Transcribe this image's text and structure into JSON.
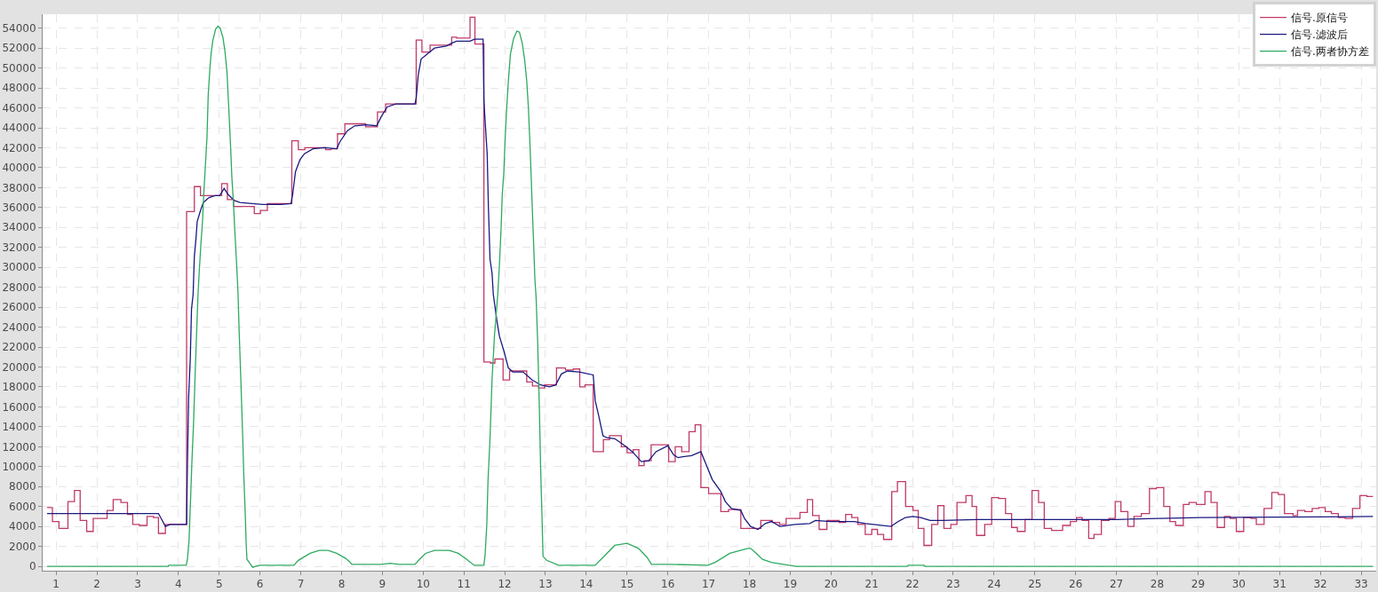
{
  "chart_data": {
    "type": "line",
    "legend": "top right",
    "grid": true,
    "xlim": [
      0.67,
      33.37
    ],
    "xticks": [
      1,
      2,
      3,
      4,
      5,
      6,
      7,
      8,
      9,
      10,
      11,
      12,
      13,
      14,
      15,
      16,
      17,
      18,
      19,
      20,
      21,
      22,
      23,
      24,
      25,
      26,
      27,
      28,
      29,
      30,
      31,
      32,
      33
    ],
    "ylim": [
      -440,
      55400
    ],
    "yticks": [
      0,
      2000,
      4000,
      6000,
      8000,
      10000,
      12000,
      14000,
      16000,
      18000,
      20000,
      22000,
      24000,
      26000,
      28000,
      30000,
      32000,
      34000,
      36000,
      38000,
      40000,
      42000,
      44000,
      46000,
      48000,
      50000,
      52000,
      54000
    ],
    "series": [
      {
        "name": "信号.原信号",
        "color": "#c03a6a",
        "type": "step",
        "x": [
          0.78,
          0.91,
          1.07,
          1.29,
          1.45,
          1.59,
          1.75,
          1.91,
          2.25,
          2.4,
          2.59,
          2.75,
          2.88,
          3.04,
          3.23,
          3.39,
          3.51,
          3.68,
          4.2,
          4.39,
          4.54,
          5.06,
          5.2,
          5.35,
          5.86,
          6.01,
          6.18,
          6.78,
          6.94,
          7.1,
          7.61,
          7.74,
          7.9,
          8.08,
          8.59,
          8.88,
          9.08,
          9.83,
          9.97,
          10.17,
          10.7,
          10.82,
          11.15,
          11.27,
          11.49,
          11.65,
          11.76,
          11.96,
          12.12,
          12.54,
          12.68,
          12.83,
          12.98,
          13.27,
          13.49,
          13.68,
          13.84,
          13.97,
          14.17,
          14.42,
          14.57,
          14.86,
          15.0,
          15.15,
          15.29,
          15.42,
          15.59,
          16.02,
          16.18,
          16.34,
          16.52,
          16.67,
          16.81,
          17.0,
          17.3,
          17.49,
          17.79,
          18.28,
          18.56,
          18.74,
          18.9,
          19.24,
          19.42,
          19.55,
          19.71,
          19.9,
          20.2,
          20.36,
          20.51,
          20.66,
          20.84,
          21.0,
          21.14,
          21.29,
          21.49,
          21.63,
          21.83,
          22.01,
          22.14,
          22.28,
          22.47,
          22.62,
          22.77,
          22.94,
          23.09,
          23.31,
          23.46,
          23.57,
          23.77,
          23.94,
          24.11,
          24.28,
          24.43,
          24.57,
          24.76,
          24.93,
          25.09,
          25.23,
          25.41,
          25.68,
          25.87,
          26.02,
          26.16,
          26.32,
          26.45,
          26.63,
          26.82,
          26.97,
          27.11,
          27.28,
          27.43,
          27.61,
          27.81,
          27.98,
          28.16,
          28.31,
          28.45,
          28.64,
          28.78,
          28.96,
          29.17,
          29.32,
          29.47,
          29.65,
          29.79,
          29.94,
          30.12,
          30.3,
          30.43,
          30.62,
          30.81,
          30.97,
          31.12,
          31.33,
          31.44,
          31.62,
          31.8,
          31.96,
          32.12,
          32.27,
          32.44,
          32.61,
          32.79,
          32.97,
          33.14,
          33.29
        ],
        "values": [
          5900,
          4500,
          3800,
          6500,
          7600,
          4600,
          3500,
          4800,
          5600,
          6700,
          6400,
          5200,
          4200,
          4100,
          5000,
          4900,
          3300,
          4200,
          35600,
          38100,
          37200,
          38400,
          36800,
          36100,
          35400,
          35700,
          36400,
          42700,
          41800,
          42000,
          41800,
          41900,
          43400,
          44400,
          44100,
          45600,
          46400,
          52800,
          51600,
          52300,
          53100,
          53000,
          55100,
          52400,
          20500,
          20400,
          20800,
          18700,
          19600,
          18500,
          18100,
          17900,
          18200,
          19900,
          19700,
          19800,
          18000,
          18200,
          11500,
          12700,
          13100,
          12000,
          11400,
          11700,
          10100,
          10600,
          12200,
          10500,
          12000,
          11500,
          13500,
          14200,
          7900,
          7300,
          5500,
          5700,
          3800,
          4600,
          4400,
          4200,
          4800,
          5400,
          6700,
          5100,
          3700,
          4600,
          4400,
          5200,
          4900,
          4200,
          3200,
          3700,
          3200,
          2700,
          7500,
          8500,
          6000,
          5600,
          3800,
          2100,
          4200,
          6100,
          3800,
          4200,
          6400,
          7100,
          6000,
          3100,
          4200,
          6900,
          6800,
          5300,
          3900,
          3500,
          4700,
          7600,
          6400,
          3800,
          3600,
          4100,
          4500,
          4900,
          4600,
          2800,
          3200,
          4600,
          4800,
          6500,
          5500,
          4000,
          5000,
          5300,
          7800,
          7900,
          6000,
          4500,
          4100,
          6200,
          6400,
          6200,
          7500,
          6400,
          3900,
          5000,
          4800,
          3500,
          4900,
          4800,
          4200,
          5800,
          7400,
          7200,
          5300,
          5100,
          5600,
          5500,
          5800,
          5900,
          5500,
          5300,
          4900,
          4800,
          5800,
          7100,
          7000,
          7000
        ]
      },
      {
        "name": "信号.滤波后",
        "color": "#1a1a80",
        "x": [
          0.78,
          3.51,
          3.68,
          3.8,
          4.2,
          4.21,
          4.22,
          4.25,
          4.29,
          4.32,
          4.36,
          4.39,
          4.43,
          4.46,
          4.54,
          4.61,
          4.75,
          4.9,
          5.01,
          5.12,
          5.22,
          5.37,
          5.51,
          5.8,
          6.07,
          6.51,
          6.76,
          6.8,
          6.87,
          6.98,
          7.09,
          7.3,
          7.59,
          7.88,
          7.96,
          8.14,
          8.32,
          8.61,
          8.86,
          8.97,
          9.12,
          9.33,
          9.8,
          9.83,
          9.88,
          9.95,
          10.13,
          10.28,
          10.57,
          10.7,
          10.82,
          11.15,
          11.26,
          11.47,
          11.49,
          11.53,
          11.57,
          11.6,
          11.64,
          11.69,
          11.72,
          11.81,
          11.87,
          11.98,
          12.09,
          12.2,
          12.45,
          12.67,
          12.88,
          13.1,
          13.25,
          13.39,
          13.54,
          13.83,
          14.17,
          14.22,
          14.3,
          14.41,
          14.51,
          14.7,
          14.91,
          15.13,
          15.35,
          15.53,
          15.71,
          16.0,
          16.14,
          16.25,
          16.36,
          16.58,
          16.81,
          16.94,
          17.09,
          17.3,
          17.41,
          17.56,
          17.79,
          17.88,
          18.03,
          18.21,
          18.39,
          18.54,
          18.75,
          19.12,
          19.48,
          19.62,
          19.99,
          20.57,
          20.85,
          21.47,
          21.65,
          21.83,
          22.01,
          22.2,
          22.43,
          22.73,
          23.57,
          25.25,
          27.0,
          29.07,
          33.29
        ],
        "values": [
          5300,
          5300,
          4000,
          4200,
          4200,
          7300,
          10200,
          17000,
          20800,
          25800,
          27300,
          31100,
          32900,
          34600,
          35700,
          36500,
          37000,
          37200,
          37200,
          37900,
          37300,
          36700,
          36500,
          36400,
          36300,
          36300,
          36400,
          37300,
          39600,
          40800,
          41400,
          41900,
          42000,
          41900,
          42600,
          43700,
          44200,
          44300,
          44200,
          45100,
          46100,
          46400,
          46400,
          47000,
          49300,
          50900,
          51500,
          52000,
          52200,
          52500,
          52700,
          52700,
          52900,
          52900,
          46700,
          44000,
          41400,
          36100,
          30800,
          29400,
          27300,
          24600,
          23100,
          21600,
          19900,
          19500,
          19500,
          18700,
          18200,
          18000,
          18200,
          19300,
          19600,
          19500,
          19200,
          16600,
          15200,
          13100,
          12900,
          12800,
          12200,
          11500,
          10500,
          10600,
          11500,
          12100,
          11200,
          10900,
          11000,
          11100,
          11500,
          10200,
          8700,
          7500,
          6500,
          5800,
          5600,
          4800,
          4000,
          3700,
          4300,
          4500,
          4000,
          4200,
          4300,
          4600,
          4500,
          4500,
          4300,
          4000,
          4500,
          4900,
          5000,
          4900,
          4600,
          4600,
          4700,
          4700,
          4700,
          4900,
          5000
        ]
      },
      {
        "name": "信号.两者协方差",
        "color": "#2eaa60",
        "x": [
          0.78,
          3.75,
          3.76,
          4.19,
          4.22,
          4.26,
          4.3,
          4.33,
          4.37,
          4.41,
          4.44,
          4.48,
          4.51,
          4.55,
          4.59,
          4.62,
          4.66,
          4.7,
          4.73,
          4.77,
          4.8,
          4.84,
          4.91,
          4.97,
          5.02,
          5.09,
          5.14,
          5.19,
          5.24,
          5.28,
          5.31,
          5.35,
          5.38,
          5.42,
          5.46,
          5.49,
          5.53,
          5.57,
          5.6,
          5.64,
          5.66,
          5.68,
          5.75,
          5.82,
          5.89,
          6.0,
          6.83,
          6.94,
          7.23,
          7.45,
          7.67,
          7.88,
          8.1,
          8.21,
          8.25,
          8.36,
          8.97,
          9.19,
          9.41,
          9.8,
          9.91,
          10.06,
          10.28,
          10.64,
          10.86,
          11.07,
          11.25,
          11.49,
          11.52,
          11.56,
          11.59,
          11.64,
          11.69,
          11.75,
          11.83,
          11.87,
          11.91,
          11.94,
          11.98,
          12.01,
          12.05,
          12.09,
          12.14,
          12.22,
          12.3,
          12.36,
          12.43,
          12.49,
          12.54,
          12.58,
          12.62,
          12.65,
          12.68,
          12.71,
          12.74,
          12.77,
          12.81,
          12.85,
          12.88,
          12.92,
          12.94,
          13.03,
          13.32,
          14.22,
          14.41,
          14.7,
          15.0,
          15.28,
          15.49,
          15.6,
          16.07,
          16.98,
          17.16,
          17.52,
          17.96,
          18.03,
          18.17,
          18.32,
          18.54,
          18.83,
          19.15,
          21.87,
          21.89,
          22.28,
          22.31,
          33.29
        ],
        "values": [
          0,
          0,
          100,
          100,
          700,
          2600,
          7000,
          10500,
          14300,
          19300,
          22800,
          27300,
          29600,
          32300,
          34600,
          37300,
          40200,
          43100,
          47300,
          49900,
          51400,
          52700,
          53900,
          54200,
          54000,
          53100,
          51700,
          49600,
          45500,
          42000,
          39000,
          36400,
          33800,
          30800,
          27500,
          23400,
          18700,
          13800,
          9400,
          5000,
          2300,
          700,
          300,
          -100,
          0,
          100,
          100,
          600,
          1300,
          1600,
          1600,
          1300,
          800,
          400,
          200,
          200,
          200,
          300,
          200,
          200,
          700,
          1300,
          1600,
          1600,
          1300,
          700,
          100,
          100,
          1200,
          4100,
          8500,
          12900,
          18800,
          23200,
          27300,
          30200,
          33800,
          37300,
          39600,
          42900,
          46100,
          48700,
          51400,
          53000,
          53700,
          53600,
          52500,
          50800,
          48700,
          46100,
          42300,
          39000,
          35500,
          32300,
          28800,
          27000,
          22300,
          15800,
          10000,
          4100,
          1000,
          600,
          100,
          100,
          900,
          2100,
          2300,
          1800,
          900,
          200,
          200,
          100,
          400,
          1300,
          1800,
          1800,
          1300,
          700,
          400,
          200,
          0,
          0,
          100,
          100,
          0,
          0
        ]
      }
    ]
  }
}
